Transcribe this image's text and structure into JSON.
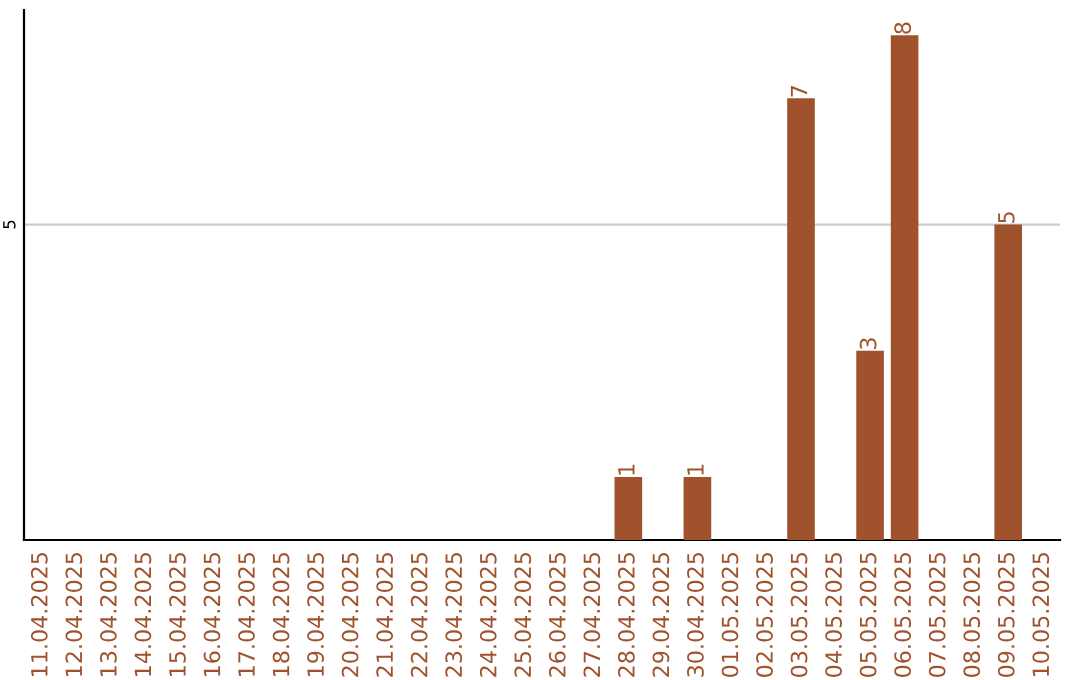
{
  "chart_data": {
    "type": "bar",
    "categories": [
      "11.04.2025",
      "12.04.2025",
      "13.04.2025",
      "14.04.2025",
      "15.04.2025",
      "16.04.2025",
      "17.04.2025",
      "18.04.2025",
      "19.04.2025",
      "20.04.2025",
      "21.04.2025",
      "22.04.2025",
      "23.04.2025",
      "24.04.2025",
      "25.04.2025",
      "26.04.2025",
      "27.04.2025",
      "28.04.2025",
      "29.04.2025",
      "30.04.2025",
      "01.05.2025",
      "02.05.2025",
      "03.05.2025",
      "04.05.2025",
      "05.05.2025",
      "06.05.2025",
      "07.05.2025",
      "08.05.2025",
      "09.05.2025",
      "10.05.2025"
    ],
    "values": [
      null,
      null,
      null,
      null,
      null,
      null,
      null,
      null,
      null,
      null,
      null,
      null,
      null,
      null,
      null,
      null,
      null,
      1,
      null,
      1,
      null,
      null,
      7,
      null,
      3,
      8,
      null,
      null,
      5,
      null
    ],
    "data_labels": true,
    "color": "#a0522d",
    "ylim": [
      0,
      8.4
    ],
    "ref_lines": [
      {
        "axis": "y",
        "value": 5,
        "label": "5",
        "color": "#cccccc"
      }
    ]
  }
}
